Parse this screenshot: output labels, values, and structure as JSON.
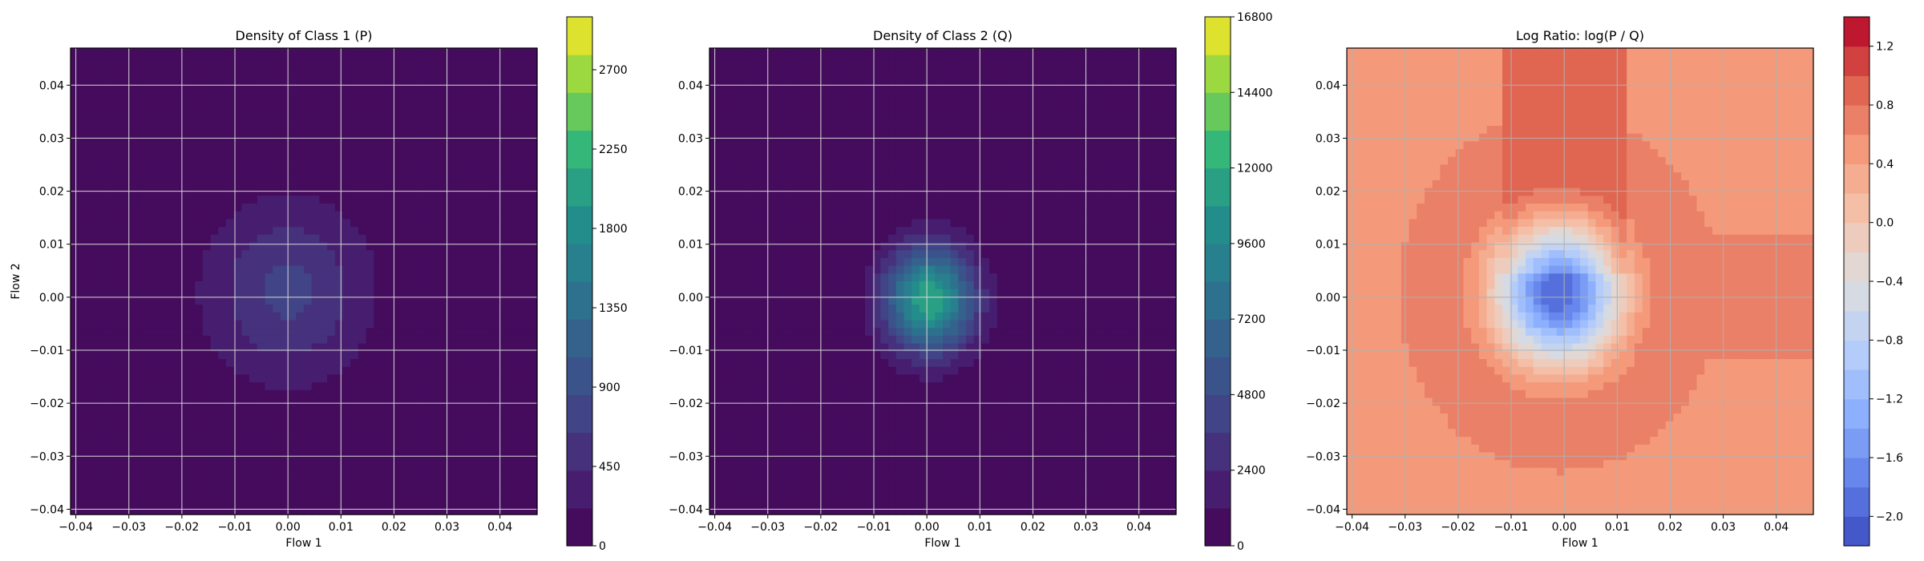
{
  "chart_data": [
    {
      "type": "heatmap",
      "title": "Density of Class 1 (P)",
      "xlabel": "Flow 1",
      "ylabel": "Flow 2",
      "xlim": [
        -0.041,
        0.047
      ],
      "ylim": [
        -0.041,
        0.047
      ],
      "xticks": [
        -0.04,
        -0.03,
        -0.02,
        -0.01,
        0.0,
        0.01,
        0.02,
        0.03,
        0.04
      ],
      "yticks": [
        -0.04,
        -0.03,
        -0.02,
        -0.01,
        0.0,
        0.01,
        0.02,
        0.03,
        0.04
      ],
      "xtick_labels": [
        "−0.04",
        "−0.03",
        "−0.02",
        "−0.01",
        "0.00",
        "0.01",
        "0.02",
        "0.03",
        "0.04"
      ],
      "ytick_labels": [
        "−0.04",
        "−0.03",
        "−0.02",
        "−0.01",
        "0.00",
        "0.01",
        "0.02",
        "0.03",
        "0.04"
      ],
      "grid": true,
      "colormap": "viridis",
      "colorbar": {
        "range": [
          0,
          3000
        ],
        "ticks": [
          0,
          450,
          900,
          1350,
          1800,
          2250,
          2700
        ],
        "tick_labels": [
          "0",
          "450",
          "900",
          "1350",
          "1800",
          "2250",
          "2700"
        ]
      },
      "peak": {
        "x": 0.0,
        "y": 0.001,
        "value": 700
      },
      "spread": {
        "sx": 0.011,
        "sy": 0.012
      }
    },
    {
      "type": "heatmap",
      "title": "Density of Class 2 (Q)",
      "xlabel": "Flow 1",
      "ylabel": "",
      "xlim": [
        -0.041,
        0.047
      ],
      "ylim": [
        -0.041,
        0.047
      ],
      "xticks": [
        -0.04,
        -0.03,
        -0.02,
        -0.01,
        0.0,
        0.01,
        0.02,
        0.03,
        0.04
      ],
      "yticks": [
        -0.04,
        -0.03,
        -0.02,
        -0.01,
        0.0,
        0.01,
        0.02,
        0.03,
        0.04
      ],
      "xtick_labels": [
        "−0.04",
        "−0.03",
        "−0.02",
        "−0.01",
        "0.00",
        "0.01",
        "0.02",
        "0.03",
        "0.04"
      ],
      "ytick_labels": [
        "−0.04",
        "−0.03",
        "−0.02",
        "−0.01",
        "0.00",
        "0.01",
        "0.02",
        "0.03",
        "0.04"
      ],
      "grid": true,
      "colormap": "viridis",
      "colorbar": {
        "range": [
          0,
          16800
        ],
        "ticks": [
          0,
          2400,
          4800,
          7200,
          9600,
          12000,
          14400,
          16800
        ],
        "tick_labels": [
          "0",
          "2400",
          "4800",
          "7200",
          "9600",
          "12000",
          "14400",
          "16800"
        ]
      },
      "peak": {
        "x": 0.0005,
        "y": -0.0005,
        "value": 12000
      },
      "spread": {
        "sx": 0.006,
        "sy": 0.007
      }
    },
    {
      "type": "heatmap",
      "title": "Log Ratio: log(P / Q)",
      "xlabel": "Flow 1",
      "ylabel": "",
      "xlim": [
        -0.041,
        0.047
      ],
      "ylim": [
        -0.041,
        0.047
      ],
      "xticks": [
        -0.04,
        -0.03,
        -0.02,
        -0.01,
        0.0,
        0.01,
        0.02,
        0.03,
        0.04
      ],
      "yticks": [
        -0.04,
        -0.03,
        -0.02,
        -0.01,
        0.0,
        0.01,
        0.02,
        0.03,
        0.04
      ],
      "xtick_labels": [
        "−0.04",
        "−0.03",
        "−0.02",
        "−0.01",
        "0.00",
        "0.01",
        "0.02",
        "0.03",
        "0.04"
      ],
      "ytick_labels": [
        "−0.04",
        "−0.03",
        "−0.02",
        "−0.01",
        "0.00",
        "0.01",
        "0.02",
        "0.03",
        "0.04"
      ],
      "grid": true,
      "colormap": "coolwarm",
      "colorbar": {
        "range": [
          -2.2,
          1.4
        ],
        "ticks": [
          -2.0,
          -1.6,
          -1.2,
          -0.8,
          -0.4,
          0.0,
          0.4,
          0.8,
          1.2
        ],
        "tick_labels": [
          "−2.0",
          "−1.6",
          "−1.2",
          "−0.8",
          "−0.4",
          "0.0",
          "0.4",
          "0.8",
          "1.2"
        ]
      },
      "min_center": {
        "x": -0.001,
        "y": 0.001,
        "value": -2.0
      },
      "background_value": 0.55
    }
  ]
}
